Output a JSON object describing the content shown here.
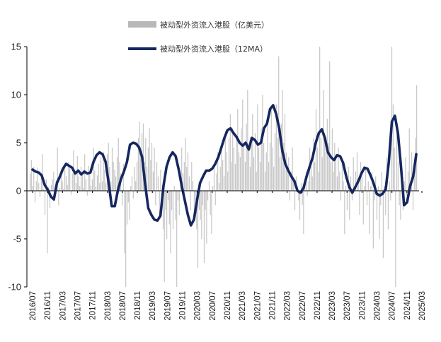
{
  "colors": {
    "bar": "#b8b8b8",
    "line": "#16275f",
    "axis": "#000000"
  },
  "chart_data": {
    "type": "bar",
    "title": "",
    "xlabel": "",
    "ylabel": "",
    "ylim": [
      -10,
      15
    ],
    "yticks": [
      -10,
      -5,
      0,
      5,
      10,
      15
    ],
    "legend_position": "top-center",
    "grid": false,
    "x_tick_labels": [
      "2016/07",
      "2016/11",
      "2017/03",
      "2017/07",
      "2017/11",
      "2018/03",
      "2018/07",
      "2018/11",
      "2019/03",
      "2019/07",
      "2019/11",
      "2020/03",
      "2020/07",
      "2020/11",
      "2021/03",
      "2021/07",
      "2021/11",
      "2022/03",
      "2022/07",
      "2022/11",
      "2023/03",
      "2023/07",
      "2023/11",
      "2024/03",
      "2024/07",
      "2024/11",
      "2025/03"
    ],
    "series": [
      {
        "name": "被动型外资流入港股（亿美元）",
        "type": "bar",
        "note_resolution": "weekly",
        "values": [
          1.8,
          3.2,
          0.5,
          2.5,
          -1.2,
          1.0,
          2.4,
          0.8,
          -0.6,
          1.5,
          3.8,
          0.2,
          -2.5,
          1.2,
          -6.5,
          0.4,
          -1.8,
          0.6,
          1.2,
          2.0,
          -0.8,
          1.1,
          4.5,
          -1.5,
          0.3,
          2.2,
          1.0,
          0.2,
          2.8,
          1.5,
          0.6,
          3.0,
          2.4,
          -0.4,
          1.8,
          4.2,
          2.0,
          0.8,
          3.6,
          1.5,
          0.5,
          2.5,
          1.8,
          0.3,
          3.8,
          1.2,
          -0.5,
          2.6,
          1.8,
          0.5,
          1.2,
          4.5,
          2.1,
          0.4,
          1.6,
          2.8,
          0.8,
          3.5,
          1.0,
          4.0,
          2.2,
          0.8,
          3.8,
          5.0,
          2.5,
          1.0,
          4.5,
          3.0,
          2.2,
          1.5,
          3.5,
          5.5,
          3.0,
          1.8,
          -1.5,
          2.8,
          -6.5,
          -10,
          -3.5,
          -1.2,
          -3.0,
          0.5,
          1.5,
          -0.8,
          2.5,
          1.0,
          3.0,
          5.5,
          7.2,
          4.2,
          6.0,
          7.0,
          3.0,
          5.5,
          2.5,
          4.5,
          6.5,
          3.2,
          5.0,
          2.0,
          4.5,
          -1.5,
          3.0,
          1.5,
          -2.5,
          2.2,
          -1.5,
          -4.0,
          -9.5,
          -2.0,
          -5.0,
          -1.0,
          -3.5,
          -6.5,
          -2.0,
          -4.0,
          0.5,
          -3.0,
          -10,
          -1.0,
          -2.5,
          2.0,
          4.5,
          1.8,
          3.0,
          5.5,
          2.5,
          4.0,
          1.5,
          -2.0,
          3.0,
          1.0,
          -2.5,
          -1.0,
          -4.0,
          -8.0,
          -2.0,
          -3.0,
          -5.0,
          -1.5,
          -7.5,
          -2.0,
          -5.5,
          -1.0,
          1.0,
          -2.5,
          -4.5,
          0.5,
          2.5,
          -1.5,
          1.8,
          4.0,
          0.8,
          2.5,
          5.0,
          3.2,
          1.5,
          6.2,
          4.0,
          2.0,
          5.5,
          8.0,
          3.0,
          6.5,
          4.5,
          2.8,
          5.8,
          8.5,
          4.0,
          3.5,
          6.5,
          9.5,
          5.0,
          3.0,
          7.0,
          10.5,
          4.2,
          2.5,
          5.5,
          8.0,
          3.5,
          6.0,
          2.0,
          9.0,
          4.5,
          3.0,
          6.5,
          10.0,
          5.0,
          2.0,
          4.0,
          7.5,
          3.0,
          5.0,
          8.5,
          4.5,
          2.5,
          6.0,
          9.0,
          5.5,
          14.0,
          3.5,
          7.0,
          10.5,
          5.0,
          8.0,
          4.0,
          2.5,
          3.5,
          -1.0,
          2.0,
          4.5,
          1.0,
          -2.0,
          1.5,
          0.5,
          -1.0,
          -3.0,
          0.8,
          -1.5,
          -4.5,
          0.5,
          2.0,
          -0.5,
          1.0,
          4.5,
          2.5,
          1.5,
          5.5,
          3.0,
          8.5,
          4.5,
          2.0,
          15.0,
          5.5,
          3.5,
          10.5,
          6.0,
          4.0,
          7.5,
          5.0,
          13.5,
          3.0,
          6.5,
          2.0,
          5.0,
          3.5,
          1.5,
          4.5,
          2.0,
          -1.0,
          3.0,
          1.0,
          -4.5,
          0.5,
          -2.0,
          2.5,
          -3.0,
          1.5,
          -1.0,
          3.5,
          0.5,
          2.0,
          4.0,
          1.0,
          -2.5,
          3.0,
          1.5,
          -3.5,
          0.5,
          2.5,
          -1.5,
          1.0,
          -4.5,
          0.5,
          2.0,
          -6.0,
          -1.0,
          1.5,
          -3.0,
          0.5,
          -5.0,
          -1.5,
          2.0,
          -7.0,
          0.5,
          -2.5,
          3.5,
          -4.0,
          1.0,
          -1.0,
          15.0,
          9.0,
          4.5,
          -10,
          6.0,
          3.0,
          -1.5,
          -3.0,
          2.0,
          -2.0,
          1.0,
          3.5,
          -0.5,
          2.0,
          6.5,
          1.0,
          4.0,
          -2.0,
          3.0,
          5.5,
          11.0
        ]
      },
      {
        "name": "被动型外资流入港股（12MA）",
        "type": "line",
        "values": [
          2.2,
          2.0,
          1.9,
          1.6,
          0.6,
          0.1,
          -0.6,
          -0.9,
          0.8,
          1.5,
          2.3,
          2.8,
          2.6,
          2.4,
          1.8,
          2.1,
          1.7,
          2.0,
          1.8,
          1.9,
          3.0,
          3.7,
          4.0,
          3.8,
          3.0,
          0.8,
          -1.6,
          -1.6,
          0.0,
          1.2,
          2.0,
          3.0,
          4.8,
          5.0,
          4.9,
          4.5,
          3.5,
          0.6,
          -1.8,
          -2.5,
          -3.0,
          -3.1,
          -2.6,
          0.5,
          2.5,
          3.5,
          4.0,
          3.6,
          2.2,
          0.5,
          -1.0,
          -2.5,
          -3.6,
          -3.0,
          -1.0,
          0.8,
          1.5,
          2.1,
          2.1,
          2.3,
          2.8,
          3.5,
          4.5,
          5.5,
          6.3,
          6.5,
          6.0,
          5.6,
          5.0,
          4.7,
          5.0,
          4.3,
          5.5,
          5.3,
          4.8,
          5.0,
          6.5,
          7.0,
          8.5,
          8.9,
          8.0,
          6.5,
          4.2,
          2.8,
          2.1,
          1.5,
          1.0,
          0.0,
          -0.2,
          0.3,
          1.5,
          2.5,
          3.5,
          5.0,
          6.0,
          6.4,
          5.5,
          4.0,
          3.5,
          3.2,
          3.7,
          3.6,
          2.9,
          1.5,
          0.4,
          -0.2,
          0.4,
          1.0,
          1.8,
          2.4,
          2.3,
          1.6,
          0.8,
          -0.3,
          -0.5,
          -0.3,
          0.2,
          3.0,
          7.2,
          7.8,
          6.0,
          2.5,
          -1.5,
          -1.2,
          0.5,
          1.5,
          3.8
        ]
      }
    ]
  }
}
